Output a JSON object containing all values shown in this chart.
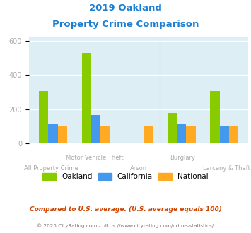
{
  "title_line1": "2019 Oakland",
  "title_line2": "Property Crime Comparison",
  "title_color": "#1a7fd4",
  "categories": [
    "All Property Crime",
    "Motor Vehicle Theft",
    "Arson",
    "Burglary",
    "Larceny & Theft"
  ],
  "oakland": [
    305,
    530,
    0,
    178,
    305
  ],
  "california": [
    115,
    165,
    0,
    115,
    105
  ],
  "national": [
    100,
    100,
    100,
    100,
    100
  ],
  "colors": {
    "oakland": "#88cc00",
    "california": "#4499ee",
    "national": "#ffaa22"
  },
  "ylim": [
    0,
    620
  ],
  "yticks": [
    0,
    200,
    400,
    600
  ],
  "bg_color": "#ddeef5",
  "grid_color": "#ffffff",
  "tick_color": "#aaaaaa",
  "footnote1": "Compared to U.S. average. (U.S. average equals 100)",
  "footnote2": "© 2025 CityRating.com - https://www.cityrating.com/crime-statistics/",
  "footnote1_color": "#cc4400",
  "footnote2_color": "#777777",
  "footnote2_link_color": "#1a7fd4",
  "bar_width": 0.22
}
